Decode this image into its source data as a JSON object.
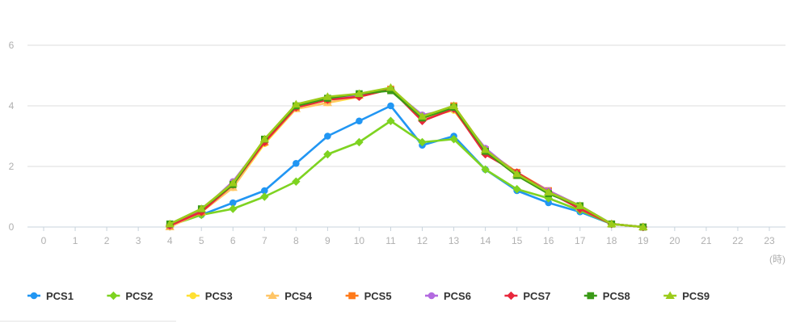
{
  "chart_data": {
    "type": "line",
    "x": [
      0,
      1,
      2,
      3,
      4,
      5,
      6,
      7,
      8,
      9,
      10,
      11,
      12,
      13,
      14,
      15,
      16,
      17,
      18,
      19,
      20,
      21,
      22,
      23
    ],
    "x_unit": "(時)",
    "ylim": [
      0,
      6
    ],
    "yticks": [
      0,
      2,
      4,
      6
    ],
    "grid": true,
    "legend": "bottom",
    "series": [
      {
        "name": "PCS1",
        "color": "#2196f3",
        "marker": "circle",
        "values": [
          null,
          null,
          null,
          null,
          0.1,
          0.4,
          0.8,
          1.2,
          2.1,
          3.0,
          3.5,
          4.0,
          2.7,
          3.0,
          1.9,
          1.2,
          0.8,
          0.5,
          0.1,
          0.0,
          null,
          null,
          null,
          null
        ]
      },
      {
        "name": "PCS2",
        "color": "#7ed321",
        "marker": "diamond",
        "values": [
          null,
          null,
          null,
          null,
          0.05,
          0.4,
          0.6,
          1.0,
          1.5,
          2.4,
          2.8,
          3.5,
          2.8,
          2.9,
          1.9,
          1.25,
          0.95,
          0.55,
          0.1,
          0.0,
          null,
          null,
          null,
          null
        ]
      },
      {
        "name": "PCS3",
        "color": "#ffe033",
        "marker": "circle",
        "values": [
          null,
          null,
          null,
          null,
          0.0,
          0.5,
          1.3,
          2.75,
          3.9,
          4.1,
          4.3,
          4.55,
          3.6,
          3.85,
          2.5,
          1.7,
          1.15,
          0.65,
          0.1,
          0.0,
          null,
          null,
          null,
          null
        ]
      },
      {
        "name": "PCS4",
        "color": "#ffc566",
        "marker": "triangle",
        "values": [
          null,
          null,
          null,
          null,
          0.0,
          0.5,
          1.3,
          2.8,
          3.9,
          4.1,
          4.35,
          4.55,
          3.6,
          3.9,
          2.5,
          1.7,
          1.15,
          0.65,
          0.1,
          0.0,
          null,
          null,
          null,
          null
        ]
      },
      {
        "name": "PCS5",
        "color": "#ff7a1a",
        "marker": "square",
        "values": [
          null,
          null,
          null,
          null,
          0.05,
          0.5,
          1.4,
          2.8,
          3.95,
          4.2,
          4.35,
          4.55,
          3.6,
          4.0,
          2.55,
          1.8,
          1.2,
          0.7,
          0.1,
          0.0,
          null,
          null,
          null,
          null
        ]
      },
      {
        "name": "PCS6",
        "color": "#b36ae0",
        "marker": "circle",
        "values": [
          null,
          null,
          null,
          null,
          0.05,
          0.55,
          1.5,
          2.85,
          4.0,
          4.25,
          4.35,
          4.55,
          3.7,
          3.9,
          2.6,
          1.75,
          1.2,
          0.7,
          0.1,
          0.0,
          null,
          null,
          null,
          null
        ]
      },
      {
        "name": "PCS7",
        "color": "#e8283c",
        "marker": "diamond",
        "values": [
          null,
          null,
          null,
          null,
          0.05,
          0.5,
          1.4,
          2.8,
          3.95,
          4.2,
          4.3,
          4.55,
          3.5,
          3.9,
          2.4,
          1.8,
          1.15,
          0.6,
          0.1,
          0.0,
          null,
          null,
          null,
          null
        ]
      },
      {
        "name": "PCS8",
        "color": "#3a9a17",
        "marker": "square",
        "values": [
          null,
          null,
          null,
          null,
          0.1,
          0.6,
          1.4,
          2.9,
          4.0,
          4.25,
          4.4,
          4.5,
          3.6,
          3.95,
          2.5,
          1.7,
          1.1,
          0.7,
          0.1,
          0.0,
          null,
          null,
          null,
          null
        ]
      },
      {
        "name": "PCS9",
        "color": "#9ccc1a",
        "marker": "triangle",
        "values": [
          null,
          null,
          null,
          null,
          0.1,
          0.6,
          1.45,
          2.9,
          4.05,
          4.3,
          4.4,
          4.6,
          3.65,
          4.0,
          2.55,
          1.75,
          1.15,
          0.7,
          0.1,
          0.0,
          null,
          null,
          null,
          null
        ]
      }
    ]
  }
}
